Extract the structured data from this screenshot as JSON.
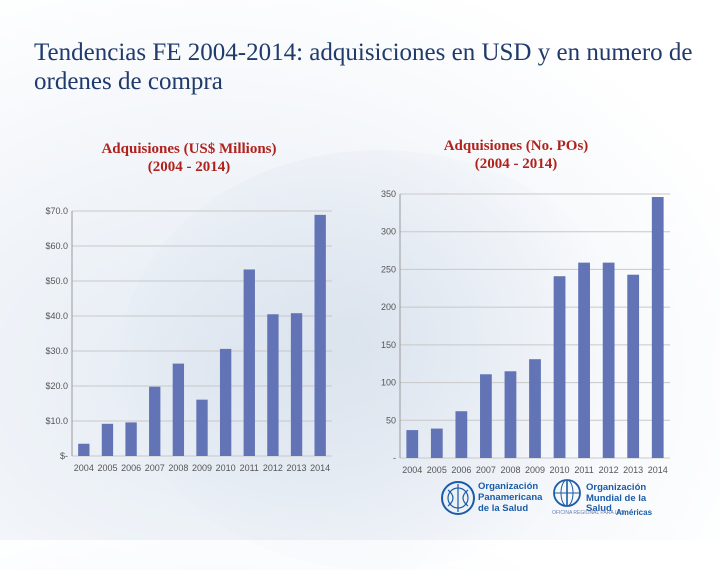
{
  "slide_title": "Tendencias FE 2004-2014: adquisiciones en  USD y en numero de ordenes de compra",
  "colors": {
    "bar": "#6374b6",
    "title_red": "#b0231d",
    "axis_text": "#555555",
    "grid": "#c8c8c8"
  },
  "chart_data": [
    {
      "type": "bar",
      "title_line1": "Adquisiones (US$ Millions)",
      "title_line2": "(2004 - 2014)",
      "categories": [
        "2004",
        "2005",
        "2006",
        "2007",
        "2008",
        "2009",
        "2010",
        "2011",
        "2012",
        "2013",
        "2014"
      ],
      "values": [
        3.5,
        9.2,
        9.6,
        19.8,
        26.4,
        16.1,
        30.6,
        53.3,
        40.5,
        40.8,
        68.9
      ],
      "ylim": [
        0,
        70
      ],
      "yticks": [
        0,
        10,
        20,
        30,
        40,
        50,
        60,
        70
      ],
      "ytick_labels": [
        "$-",
        "$10.0",
        "$20.0",
        "$30.0",
        "$40.0",
        "$50.0",
        "$60.0",
        "$70.0"
      ],
      "xlabel": "",
      "ylabel": ""
    },
    {
      "type": "bar",
      "title_line1": "Adquisiones (No. POs)",
      "title_line2": "(2004 - 2014)",
      "categories": [
        "2004",
        "2005",
        "2006",
        "2007",
        "2008",
        "2009",
        "2010",
        "2011",
        "2012",
        "2013",
        "2014"
      ],
      "values": [
        37,
        39,
        62,
        111,
        115,
        131,
        241,
        259,
        259,
        243,
        346
      ],
      "ylim": [
        0,
        350
      ],
      "yticks": [
        0,
        50,
        100,
        150,
        200,
        250,
        300,
        350
      ],
      "ytick_labels": [
        "-",
        "50",
        "100",
        "150",
        "200",
        "250",
        "300",
        "350"
      ],
      "xlabel": "",
      "ylabel": ""
    }
  ],
  "logos": {
    "ops_line1": "Organización",
    "ops_line2": "Panamericana",
    "ops_line3": "de la Salud",
    "oms_line1": "Organización",
    "oms_line2": "Mundial de la Salud",
    "oms_sub": "OFICINA REGIONAL PARA LAS",
    "oms_region": "Américas"
  }
}
